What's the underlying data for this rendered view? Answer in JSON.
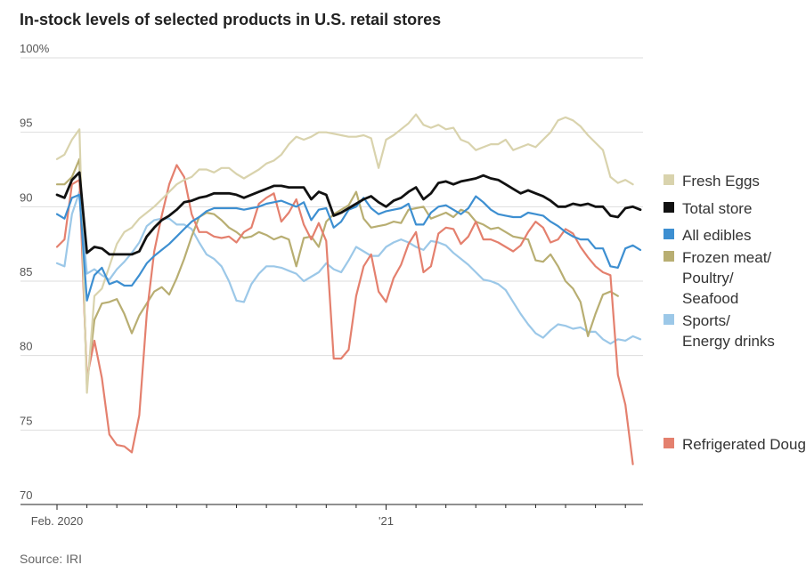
{
  "chart_data": {
    "type": "line",
    "title": "In-stock levels of selected products in U.S. retail stores",
    "source": "Source: IRI",
    "ylim": [
      70,
      100
    ],
    "y_ticks": [
      70,
      75,
      80,
      85,
      90,
      95,
      100
    ],
    "y_tick_labels": [
      "70",
      "75",
      "80",
      "85",
      "90",
      "95",
      "100%"
    ],
    "x_tick_labels": [
      "Feb. 2020",
      "'21"
    ],
    "x_tick_index": [
      0,
      44
    ],
    "grid": true,
    "legend": "right",
    "series": [
      {
        "name": "Fresh Eggs",
        "color": "#d9d3ad",
        "values": [
          93.2,
          93.5,
          94.5,
          95.2,
          77.5,
          84.0,
          84.5,
          86.0,
          87.5,
          88.3,
          88.6,
          89.2,
          89.6,
          90.0,
          90.5,
          91.0,
          91.5,
          91.8,
          92.0,
          92.5,
          92.5,
          92.3,
          92.6,
          92.6,
          92.2,
          91.9,
          92.2,
          92.5,
          92.9,
          93.1,
          93.5,
          94.2,
          94.7,
          94.5,
          94.7,
          95.0,
          95.0,
          94.9,
          94.8,
          94.7,
          94.7,
          94.8,
          94.6,
          92.6,
          94.5,
          94.8,
          95.2,
          95.6,
          96.2,
          95.5,
          95.3,
          95.5,
          95.2,
          95.3,
          94.5,
          94.3,
          93.8,
          94.0,
          94.2,
          94.2,
          94.5,
          93.8,
          94.0,
          94.2,
          94.0,
          94.5,
          95.0,
          95.8,
          96.0,
          95.8,
          95.4,
          94.8,
          94.3,
          93.8,
          92.0,
          91.6,
          91.8,
          91.5
        ]
      },
      {
        "name": "Total store",
        "color": "#111111",
        "values": [
          90.8,
          90.6,
          91.8,
          92.3,
          86.9,
          87.3,
          87.2,
          86.8,
          86.8,
          86.8,
          86.8,
          87.0,
          88.0,
          88.6,
          89.1,
          89.4,
          89.8,
          90.3,
          90.4,
          90.6,
          90.7,
          90.9,
          90.9,
          90.9,
          90.8,
          90.6,
          90.8,
          91.0,
          91.2,
          91.4,
          91.4,
          91.3,
          91.3,
          91.3,
          90.5,
          91.0,
          90.8,
          89.4,
          89.6,
          89.9,
          90.2,
          90.5,
          90.7,
          90.3,
          90.0,
          90.4,
          90.6,
          91.0,
          91.3,
          90.5,
          90.9,
          91.6,
          91.7,
          91.5,
          91.7,
          91.8,
          91.9,
          92.1,
          91.9,
          91.8,
          91.5,
          91.2,
          90.9,
          91.1,
          90.9,
          90.7,
          90.4,
          90.0,
          90.0,
          90.2,
          90.1,
          90.2,
          90.0,
          90.0,
          89.4,
          89.3,
          89.9,
          90.0,
          89.8
        ]
      },
      {
        "name": "All edibles",
        "color": "#3d8fd1",
        "values": [
          89.5,
          89.2,
          90.6,
          90.8,
          83.7,
          85.4,
          85.9,
          84.8,
          85.0,
          84.7,
          84.7,
          85.4,
          86.2,
          86.7,
          87.1,
          87.5,
          88.0,
          88.5,
          89.0,
          89.3,
          89.7,
          89.9,
          89.9,
          89.9,
          89.9,
          89.8,
          89.9,
          90.0,
          90.2,
          90.3,
          90.4,
          90.2,
          90.0,
          90.3,
          89.1,
          89.8,
          89.9,
          88.6,
          89.0,
          89.8,
          90.0,
          90.6,
          89.9,
          89.5,
          89.7,
          89.8,
          89.9,
          90.2,
          88.8,
          88.8,
          89.6,
          90.0,
          90.1,
          89.8,
          89.5,
          89.9,
          90.7,
          90.3,
          89.8,
          89.5,
          89.4,
          89.3,
          89.3,
          89.6,
          89.5,
          89.4,
          89.0,
          88.7,
          88.3,
          88.0,
          87.8,
          87.8,
          87.2,
          87.2,
          86.0,
          85.9,
          87.2,
          87.4,
          87.1
        ]
      },
      {
        "name": "Frozen meat/ Poultry/ Seafood",
        "color": "#b8ae72",
        "values": [
          91.5,
          91.5,
          92.0,
          93.2,
          78.0,
          82.4,
          83.5,
          83.6,
          83.8,
          82.8,
          81.5,
          82.7,
          83.5,
          84.3,
          84.6,
          84.1,
          85.2,
          86.5,
          88.0,
          89.3,
          89.6,
          89.5,
          89.1,
          88.6,
          88.3,
          87.9,
          88.0,
          88.3,
          88.1,
          87.8,
          88.0,
          87.8,
          86.0,
          87.9,
          88.0,
          87.3,
          89.0,
          89.5,
          89.8,
          90.1,
          91.0,
          89.2,
          88.6,
          88.7,
          88.8,
          89.0,
          88.9,
          89.8,
          89.9,
          90.0,
          89.2,
          89.4,
          89.6,
          89.3,
          89.8,
          89.6,
          89.0,
          88.8,
          88.5,
          88.6,
          88.3,
          88.0,
          87.9,
          87.8,
          86.4,
          86.3,
          86.8,
          86.0,
          85.0,
          84.5,
          83.6,
          81.3,
          82.8,
          84.1,
          84.3,
          84.0
        ]
      },
      {
        "name": "Sports/ Energy drinks",
        "color": "#9cc8e8",
        "values": [
          86.2,
          86.0,
          89.5,
          91.0,
          85.5,
          85.8,
          85.4,
          85.1,
          85.8,
          86.3,
          86.9,
          87.6,
          88.7,
          89.1,
          89.2,
          89.2,
          88.8,
          88.8,
          88.5,
          87.6,
          86.8,
          86.5,
          86.0,
          85.0,
          83.7,
          83.6,
          84.8,
          85.5,
          86.0,
          86.0,
          85.9,
          85.7,
          85.5,
          85.0,
          85.3,
          85.6,
          86.2,
          85.8,
          85.6,
          86.4,
          87.3,
          87.0,
          86.7,
          86.7,
          87.3,
          87.6,
          87.8,
          87.6,
          87.3,
          87.1,
          87.7,
          87.6,
          87.4,
          86.9,
          86.5,
          86.1,
          85.6,
          85.1,
          85.0,
          84.8,
          84.4,
          83.6,
          82.8,
          82.1,
          81.5,
          81.2,
          81.7,
          82.1,
          82.0,
          81.8,
          81.9,
          81.6,
          81.6,
          81.1,
          80.8,
          81.1,
          81.0,
          81.3,
          81.1
        ]
      },
      {
        "name": "Refrigerated Dough",
        "color": "#e4806e",
        "values": [
          87.3,
          87.8,
          91.5,
          91.8,
          78.5,
          81.0,
          78.5,
          74.7,
          74.0,
          73.9,
          73.5,
          76.0,
          82.8,
          87.0,
          89.4,
          91.5,
          92.8,
          92.0,
          89.5,
          88.3,
          88.3,
          88.0,
          87.9,
          88.0,
          87.6,
          88.3,
          88.6,
          90.2,
          90.6,
          90.9,
          89.0,
          89.6,
          90.5,
          88.8,
          87.8,
          88.9,
          87.7,
          79.8,
          79.8,
          80.4,
          84.0,
          86.0,
          86.8,
          84.3,
          83.6,
          85.2,
          86.1,
          87.5,
          88.3,
          85.6,
          86.0,
          88.2,
          88.6,
          88.5,
          87.5,
          88.0,
          89.0,
          87.8,
          87.8,
          87.6,
          87.3,
          87.0,
          87.4,
          88.3,
          89.0,
          88.6,
          87.6,
          87.8,
          88.5,
          88.2,
          87.3,
          86.6,
          86.0,
          85.6,
          85.4,
          78.7,
          76.7,
          72.7
        ]
      }
    ]
  }
}
